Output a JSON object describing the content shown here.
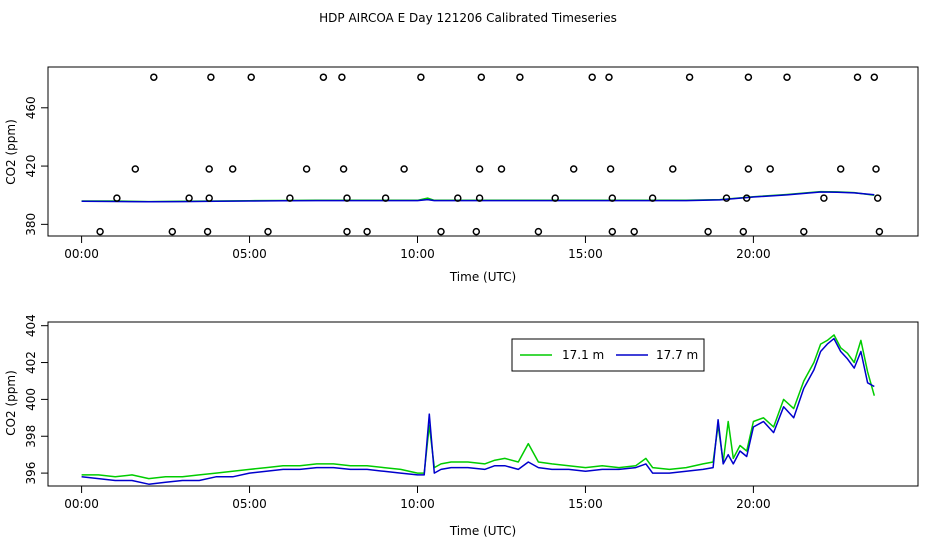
{
  "title": "HDP AIRCOA E  Day 121206  Calibrated Timeseries",
  "chart_data": [
    {
      "type": "scatter",
      "xlabel": "Time (UTC)",
      "ylabel": "CO2 (ppm)",
      "xlim": [
        -1.0,
        24.9
      ],
      "ylim": [
        372,
        488
      ],
      "x_ticks": [
        0,
        5,
        10,
        15,
        20
      ],
      "x_tick_labels": [
        "00:00",
        "05:00",
        "10:00",
        "15:00",
        "20:00"
      ],
      "y_ticks": [
        380,
        420,
        460
      ],
      "y_tick_labels": [
        "380",
        "420",
        "460"
      ],
      "points": [
        [
          2.15,
          481
        ],
        [
          3.85,
          481
        ],
        [
          5.05,
          481
        ],
        [
          7.2,
          481
        ],
        [
          7.75,
          481
        ],
        [
          10.1,
          481
        ],
        [
          11.9,
          481
        ],
        [
          13.05,
          481
        ],
        [
          15.2,
          481
        ],
        [
          15.7,
          481
        ],
        [
          18.1,
          481
        ],
        [
          19.85,
          481
        ],
        [
          21.0,
          481
        ],
        [
          23.1,
          481
        ],
        [
          23.6,
          481
        ],
        [
          1.6,
          418
        ],
        [
          3.8,
          418
        ],
        [
          4.5,
          418
        ],
        [
          6.7,
          418
        ],
        [
          7.8,
          418
        ],
        [
          9.6,
          418
        ],
        [
          11.85,
          418
        ],
        [
          12.5,
          418
        ],
        [
          14.65,
          418
        ],
        [
          15.75,
          418
        ],
        [
          17.6,
          418
        ],
        [
          19.85,
          418
        ],
        [
          20.5,
          418
        ],
        [
          22.6,
          418
        ],
        [
          23.65,
          418
        ],
        [
          1.05,
          398
        ],
        [
          3.2,
          398
        ],
        [
          3.8,
          398
        ],
        [
          6.2,
          398
        ],
        [
          7.9,
          398
        ],
        [
          9.05,
          398
        ],
        [
          11.2,
          398
        ],
        [
          11.85,
          398
        ],
        [
          14.1,
          398
        ],
        [
          15.8,
          398
        ],
        [
          17.0,
          398
        ],
        [
          19.2,
          398
        ],
        [
          19.8,
          398
        ],
        [
          22.1,
          398
        ],
        [
          23.7,
          398
        ],
        [
          0.55,
          375
        ],
        [
          2.7,
          375
        ],
        [
          3.75,
          375
        ],
        [
          5.55,
          375
        ],
        [
          7.9,
          375
        ],
        [
          8.5,
          375
        ],
        [
          10.7,
          375
        ],
        [
          11.75,
          375
        ],
        [
          13.6,
          375
        ],
        [
          15.8,
          375
        ],
        [
          16.45,
          375
        ],
        [
          18.65,
          375
        ],
        [
          19.7,
          375
        ],
        [
          21.5,
          375
        ],
        [
          23.75,
          375
        ]
      ],
      "series": [
        {
          "color": "#00cc00",
          "x": [
            0,
            1,
            2,
            3,
            4,
            5,
            6,
            7,
            8,
            9,
            10,
            10.3,
            10.5,
            11,
            12,
            13,
            14,
            15,
            16,
            17,
            18,
            19,
            20,
            21,
            22,
            22.5,
            23,
            23.6
          ],
          "y": [
            396,
            396,
            395.6,
            395.8,
            396,
            396.2,
            396.4,
            396.5,
            396.5,
            396.5,
            396.5,
            398,
            396.5,
            396.5,
            396.5,
            396.5,
            396.5,
            396.5,
            396.5,
            396.5,
            396.5,
            397,
            399,
            400.5,
            402.5,
            402.3,
            401.8,
            400
          ]
        },
        {
          "color": "#0000cc",
          "x": [
            0,
            1,
            2,
            3,
            4,
            5,
            6,
            7,
            8,
            9,
            10,
            10.3,
            10.5,
            11,
            12,
            13,
            14,
            15,
            16,
            17,
            18,
            19,
            20,
            21,
            22,
            22.5,
            23,
            23.6
          ],
          "y": [
            395.8,
            395.7,
            395.5,
            395.6,
            395.8,
            396,
            396.2,
            396.3,
            396.3,
            396.3,
            396.3,
            397,
            396.3,
            396.3,
            396.3,
            396.3,
            396.3,
            396.3,
            396.3,
            396.3,
            396.3,
            396.8,
            398.8,
            400.2,
            402.2,
            402.0,
            401.6,
            400.3
          ]
        }
      ]
    },
    {
      "type": "line",
      "xlabel": "Time (UTC)",
      "ylabel": "CO2 (ppm)",
      "xlim": [
        -1.0,
        24.9
      ],
      "ylim": [
        395.3,
        404.2
      ],
      "x_ticks": [
        0,
        5,
        10,
        15,
        20
      ],
      "x_tick_labels": [
        "00:00",
        "05:00",
        "10:00",
        "15:00",
        "20:00"
      ],
      "y_ticks": [
        396,
        398,
        400,
        402,
        404
      ],
      "y_tick_labels": [
        "396",
        "398",
        "400",
        "402",
        "404"
      ],
      "legend_position": "top-right",
      "series": [
        {
          "name": "17.1 m",
          "color": "#00cc00",
          "x": [
            0,
            0.5,
            1,
            1.5,
            2,
            2.5,
            3,
            3.5,
            4,
            4.5,
            5,
            5.5,
            6,
            6.5,
            7,
            7.5,
            8,
            8.5,
            9,
            9.5,
            10,
            10.2,
            10.35,
            10.5,
            10.7,
            11,
            11.5,
            12,
            12.3,
            12.6,
            13,
            13.3,
            13.6,
            14,
            14.5,
            15,
            15.5,
            16,
            16.5,
            16.8,
            17,
            17.5,
            18,
            18.5,
            18.8,
            18.95,
            19.1,
            19.25,
            19.4,
            19.6,
            19.8,
            20,
            20.3,
            20.6,
            20.9,
            21.2,
            21.5,
            21.8,
            22.0,
            22.2,
            22.4,
            22.6,
            22.8,
            23.0,
            23.2,
            23.4,
            23.6
          ],
          "y": [
            395.9,
            395.9,
            395.8,
            395.9,
            395.7,
            395.8,
            395.8,
            395.9,
            396.0,
            396.1,
            396.2,
            396.3,
            396.4,
            396.4,
            396.5,
            396.5,
            396.4,
            396.4,
            396.3,
            396.2,
            396.0,
            396.0,
            398.6,
            396.3,
            396.5,
            396.6,
            396.6,
            396.5,
            396.7,
            396.8,
            396.6,
            397.6,
            396.6,
            396.5,
            396.4,
            396.3,
            396.4,
            396.3,
            396.4,
            396.8,
            396.3,
            396.2,
            396.3,
            396.5,
            396.6,
            398.6,
            396.6,
            398.8,
            396.8,
            397.5,
            397.2,
            398.8,
            399.0,
            398.5,
            400.0,
            399.5,
            401.0,
            402.0,
            403.0,
            403.2,
            403.5,
            402.8,
            402.5,
            402.0,
            403.2,
            401.5,
            400.2
          ]
        },
        {
          "name": "17.7 m",
          "color": "#0000cc",
          "x": [
            0,
            0.5,
            1,
            1.5,
            2,
            2.5,
            3,
            3.5,
            4,
            4.5,
            5,
            5.5,
            6,
            6.5,
            7,
            7.5,
            8,
            8.5,
            9,
            9.5,
            10,
            10.2,
            10.35,
            10.5,
            10.7,
            11,
            11.5,
            12,
            12.3,
            12.6,
            13,
            13.3,
            13.6,
            14,
            14.5,
            15,
            15.5,
            16,
            16.5,
            16.8,
            17,
            17.5,
            18,
            18.5,
            18.8,
            18.95,
            19.1,
            19.25,
            19.4,
            19.6,
            19.8,
            20,
            20.3,
            20.6,
            20.9,
            21.2,
            21.5,
            21.8,
            22.0,
            22.2,
            22.4,
            22.6,
            22.8,
            23.0,
            23.2,
            23.4,
            23.6
          ],
          "y": [
            395.8,
            395.7,
            395.6,
            395.6,
            395.4,
            395.5,
            395.6,
            395.6,
            395.8,
            395.8,
            396.0,
            396.1,
            396.2,
            396.2,
            396.3,
            396.3,
            396.2,
            396.2,
            396.1,
            396.0,
            395.9,
            395.9,
            399.2,
            396.0,
            396.2,
            396.3,
            396.3,
            396.2,
            396.4,
            396.4,
            396.2,
            396.6,
            396.3,
            396.2,
            396.2,
            396.1,
            396.2,
            396.2,
            396.3,
            396.5,
            396.0,
            396.0,
            396.1,
            396.2,
            396.3,
            398.9,
            396.5,
            397.0,
            396.5,
            397.2,
            396.9,
            398.5,
            398.8,
            398.2,
            399.6,
            399.0,
            400.6,
            401.6,
            402.6,
            403.0,
            403.3,
            402.6,
            402.2,
            401.7,
            402.6,
            400.9,
            400.7
          ]
        }
      ]
    }
  ]
}
